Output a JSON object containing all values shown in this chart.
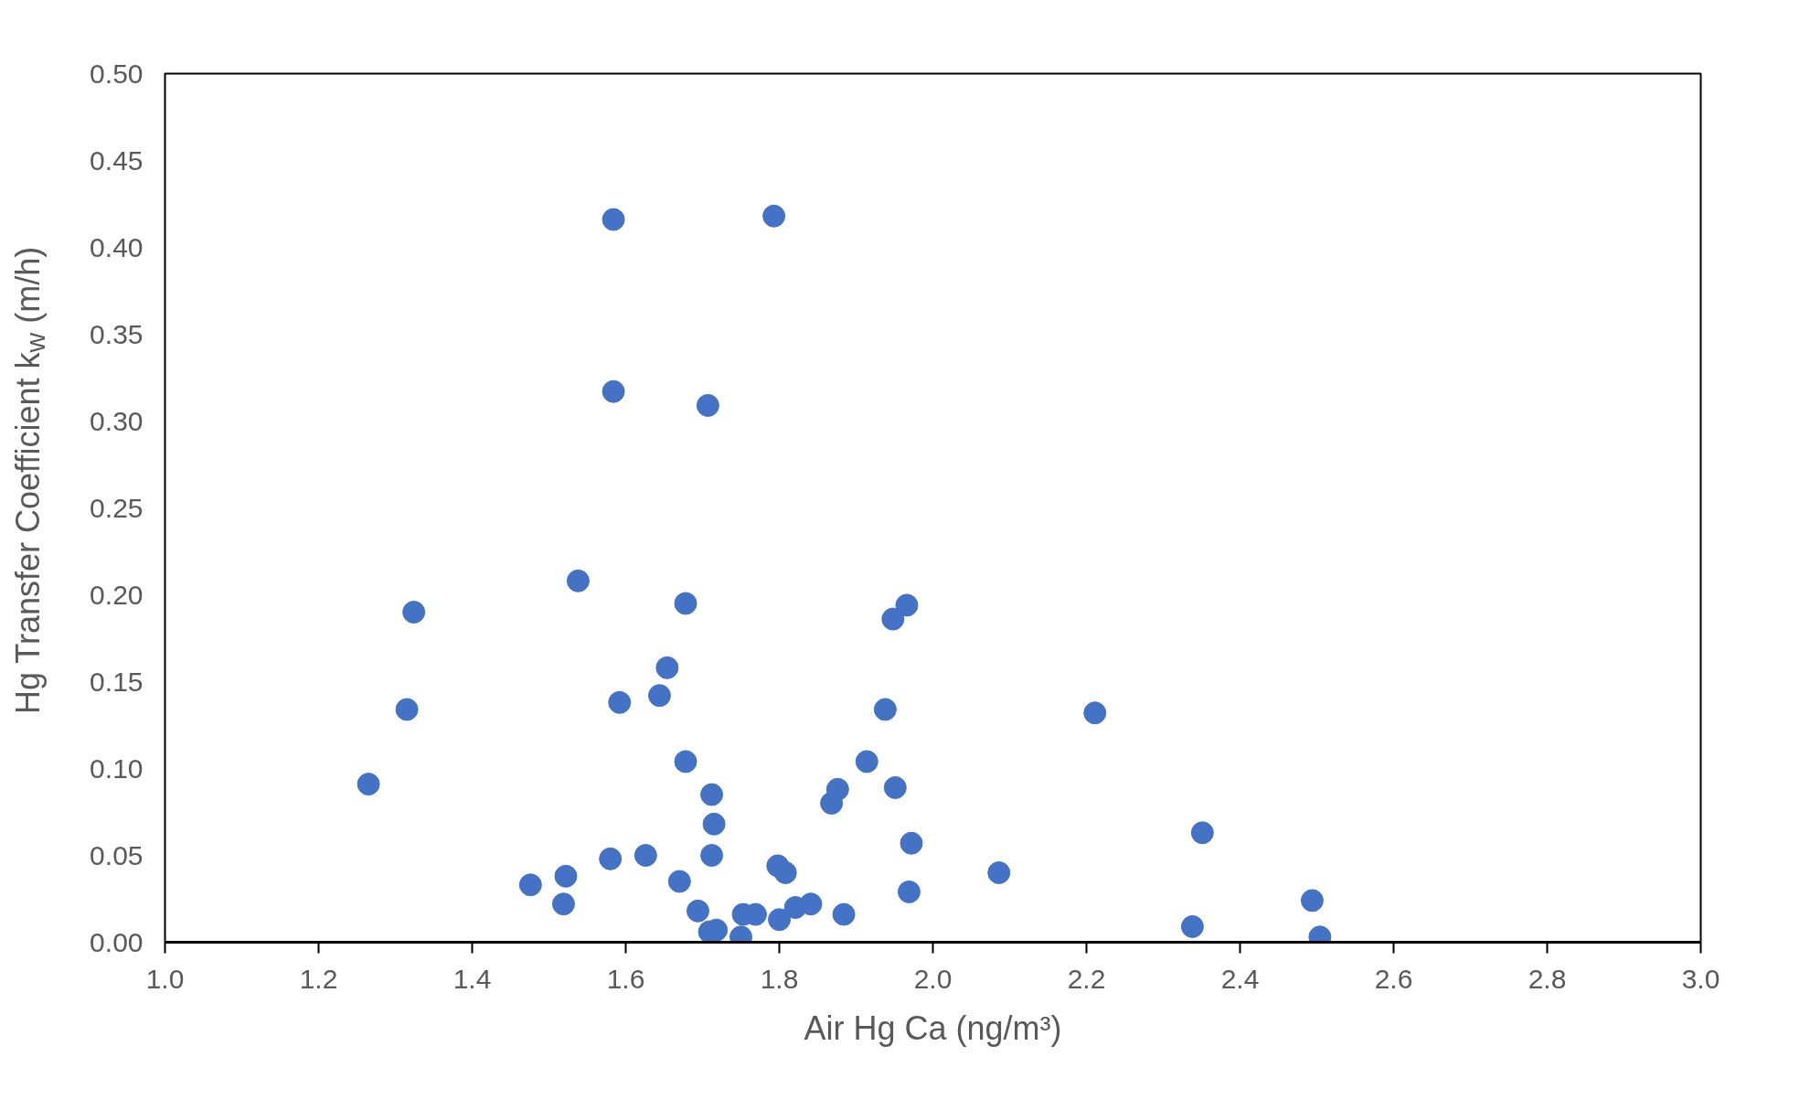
{
  "chart_data": {
    "type": "scatter",
    "xlabel": "Air Hg Ca (ng/m³)",
    "ylabel": "Hg Transfer Coefficient k$_{w}$ (m/h)",
    "x": [
      1.584,
      1.793,
      1.584,
      1.707,
      1.538,
      1.324,
      1.678,
      1.966,
      1.948,
      1.654,
      1.644,
      1.592,
      1.315,
      1.938,
      2.211,
      1.678,
      1.914,
      1.265,
      1.712,
      1.951,
      1.876,
      1.868,
      1.715,
      2.351,
      1.972,
      1.626,
      1.58,
      1.712,
      1.798,
      1.808,
      2.086,
      1.522,
      1.476,
      1.67,
      1.969,
      1.519,
      2.494,
      1.694,
      1.753,
      1.769,
      1.841,
      1.821,
      1.8,
      1.884,
      1.709,
      1.718,
      1.75,
      2.338,
      2.504
    ],
    "series": [
      {
        "color": "#4472c4",
        "values": [
          0.416,
          0.418,
          0.317,
          0.309,
          0.208,
          0.19,
          0.195,
          0.194,
          0.186,
          0.158,
          0.142,
          0.138,
          0.134,
          0.134,
          0.132,
          0.104,
          0.104,
          0.091,
          0.085,
          0.089,
          0.088,
          0.08,
          0.068,
          0.063,
          0.057,
          0.05,
          0.048,
          0.05,
          0.044,
          0.04,
          0.04,
          0.038,
          0.033,
          0.035,
          0.029,
          0.022,
          0.024,
          0.018,
          0.016,
          0.016,
          0.022,
          0.02,
          0.013,
          0.016,
          0.006,
          0.007,
          0.003,
          0.009,
          0.003
        ]
      }
    ],
    "marker": "circle",
    "grid": false,
    "xlim": [
      1.0,
      3.0
    ],
    "ylim": [
      0.0,
      0.5
    ],
    "xticks": [
      {
        "value": 1.0,
        "label": "1.0"
      },
      {
        "value": 1.2,
        "label": "1.2"
      },
      {
        "value": 1.4,
        "label": "1.4"
      },
      {
        "value": 1.6,
        "label": "1.6"
      },
      {
        "value": 1.8,
        "label": "1.8"
      },
      {
        "value": 2.0,
        "label": "2.0"
      },
      {
        "value": 2.2,
        "label": "2.2"
      },
      {
        "value": 2.4,
        "label": "2.4"
      },
      {
        "value": 2.6,
        "label": "2.6"
      },
      {
        "value": 2.8,
        "label": "2.8"
      },
      {
        "value": 3.0,
        "label": "3.0"
      }
    ],
    "yticks": [
      {
        "value": 0.0,
        "label": "0.00"
      },
      {
        "value": 0.05,
        "label": "0.05"
      },
      {
        "value": 0.1,
        "label": "0.10"
      },
      {
        "value": 0.15,
        "label": "0.15"
      },
      {
        "value": 0.2,
        "label": "0.20"
      },
      {
        "value": 0.25,
        "label": "0.25"
      },
      {
        "value": 0.3,
        "label": "0.30"
      },
      {
        "value": 0.35,
        "label": "0.35"
      },
      {
        "value": 0.4,
        "label": "0.40"
      },
      {
        "value": 0.45,
        "label": "0.45"
      },
      {
        "value": 0.5,
        "label": "0.50"
      }
    ]
  }
}
